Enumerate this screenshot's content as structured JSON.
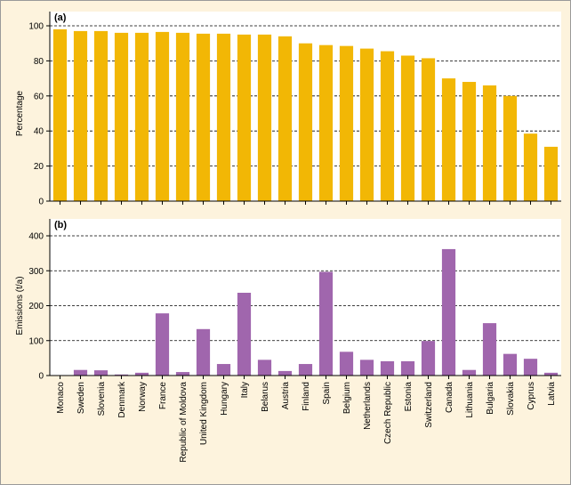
{
  "categories": [
    "Monaco",
    "Sweden",
    "Slovenia",
    "Denmark",
    "Norway",
    "France",
    "Republic of Moldova",
    "United Kingdom",
    "Hungary",
    "Italy",
    "Belarus",
    "Austria",
    "Finland",
    "Spain",
    "Belgium",
    "Netherlands",
    "Czech Republic",
    "Estonia",
    "Switzerland",
    "Canada",
    "Lithuania",
    "Bulgaria",
    "Slovakia",
    "Cyprus",
    "Latvia"
  ],
  "colors": {
    "panel_a": "#f2b705",
    "panel_b": "#a066ad",
    "background": "#fdf3dd",
    "plot_background": "#ffffff"
  },
  "chart_data": [
    {
      "type": "bar",
      "panel_label": "(a)",
      "ylabel": "Percentage",
      "ylim": [
        0,
        100
      ],
      "yticks": [
        0,
        20,
        40,
        60,
        80,
        100
      ],
      "grid": "horizontal dashed",
      "series": [
        {
          "values": [
            98,
            97,
            97,
            96,
            96,
            96.5,
            96,
            95.5,
            95.5,
            95,
            95,
            94,
            90,
            89,
            88.5,
            87,
            85.5,
            83,
            81.5,
            70,
            68,
            66,
            60,
            38.5,
            31
          ]
        }
      ]
    },
    {
      "type": "bar",
      "panel_label": "(b)",
      "ylabel": "Emissions (t/a)",
      "ylim": [
        0,
        400
      ],
      "yticks": [
        0,
        100,
        200,
        300,
        400
      ],
      "grid": "horizontal dashed",
      "series": [
        {
          "values": [
            1,
            16,
            15,
            3,
            8,
            178,
            10,
            133,
            33,
            237,
            45,
            13,
            33,
            297,
            68,
            45,
            41,
            41,
            99,
            362,
            16,
            150,
            62,
            48,
            8
          ]
        }
      ]
    }
  ]
}
